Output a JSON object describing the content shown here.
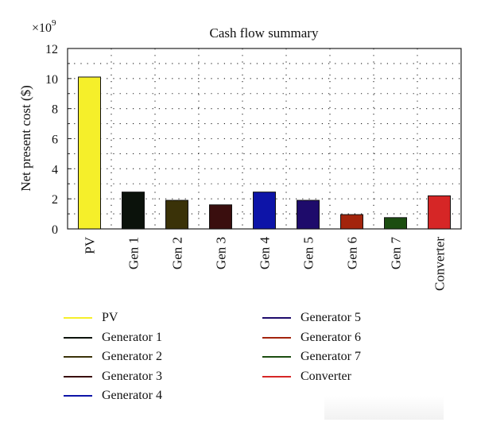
{
  "chart_data": {
    "type": "bar",
    "title": "Cash flow summary",
    "ylabel": "Net present cost ($)",
    "xlabel": "",
    "y_multiplier": "×10",
    "y_multiplier_exp": "9",
    "ylim": [
      0,
      12
    ],
    "yticks": [
      0,
      2,
      4,
      6,
      8,
      10,
      12
    ],
    "grid": true,
    "categories": [
      "PV",
      "Gen 1",
      "Gen 2",
      "Gen 3",
      "Gen 4",
      "Gen 5",
      "Gen 6",
      "Gen 7",
      "Converter"
    ],
    "values": [
      10.1,
      2.45,
      1.9,
      1.6,
      2.45,
      1.9,
      0.95,
      0.75,
      2.2
    ],
    "colors": [
      "#f5ef2a",
      "#0b120b",
      "#3a3208",
      "#3a0e0e",
      "#0d14a8",
      "#1e0b6b",
      "#a3240c",
      "#1b4d10",
      "#d62626"
    ]
  },
  "legend": {
    "column_1": [
      {
        "label": "PV",
        "color": "#f5ef2a"
      },
      {
        "label": "Generator 1",
        "color": "#0b120b"
      },
      {
        "label": "Generator 2",
        "color": "#3a3208"
      },
      {
        "label": "Generator 3",
        "color": "#3a0e0e"
      },
      {
        "label": "Generator 4",
        "color": "#0d14a8"
      }
    ],
    "column_2": [
      {
        "label": "Generator 5",
        "color": "#1e0b6b"
      },
      {
        "label": "Generator 6",
        "color": "#a3240c"
      },
      {
        "label": "Generator 7",
        "color": "#1b4d10"
      },
      {
        "label": "Converter",
        "color": "#d62626"
      }
    ]
  }
}
